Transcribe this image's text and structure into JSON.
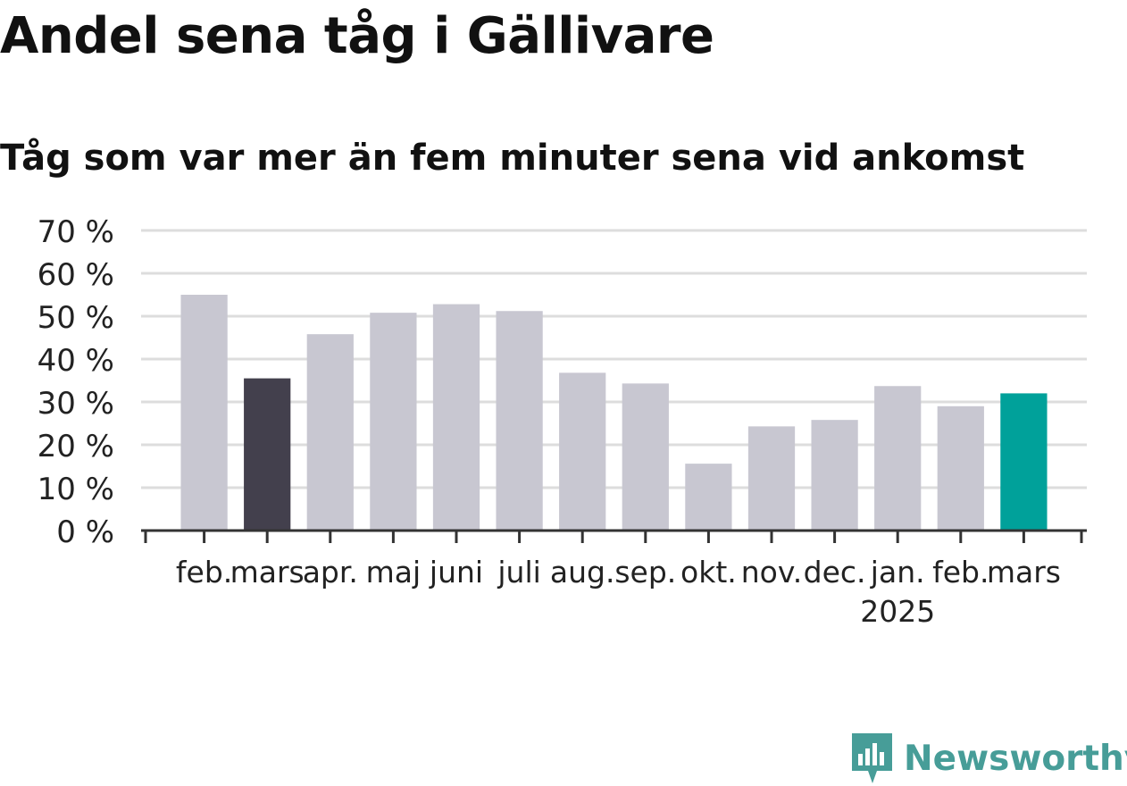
{
  "chart_data": {
    "type": "bar",
    "title": "Andel sena tåg i Gällivare",
    "subtitle": "Tåg som var mer än fem minuter sena vid ankomst",
    "categories": [
      "feb.",
      "mars",
      "apr.",
      "maj",
      "juni",
      "juli",
      "aug.",
      "sep.",
      "okt.",
      "nov.",
      "dec.",
      "jan.",
      "feb.",
      "mars"
    ],
    "year_labels": [
      {
        "index": 11,
        "label": "2025"
      }
    ],
    "values": [
      55,
      35.5,
      45.8,
      50.8,
      52.8,
      51.2,
      36.8,
      34.3,
      15.6,
      24.3,
      25.8,
      33.7,
      29,
      32
    ],
    "highlight": {
      "1": "#43404d",
      "13": "#00a19a"
    },
    "bar_color": "#c8c7d1",
    "ylim": [
      0,
      70
    ],
    "y_ticks": [
      0,
      10,
      20,
      30,
      40,
      50,
      60,
      70
    ],
    "y_tick_labels": [
      "0 %",
      "10 %",
      "20 %",
      "30 %",
      "40 %",
      "50 %",
      "60 %",
      "70 %"
    ],
    "xlabel": "",
    "ylabel": "",
    "grid": true,
    "legend": "none"
  },
  "branding": {
    "name": "Newsworthy",
    "icon": "newsworthy-logo-icon",
    "color": "#479d98"
  }
}
